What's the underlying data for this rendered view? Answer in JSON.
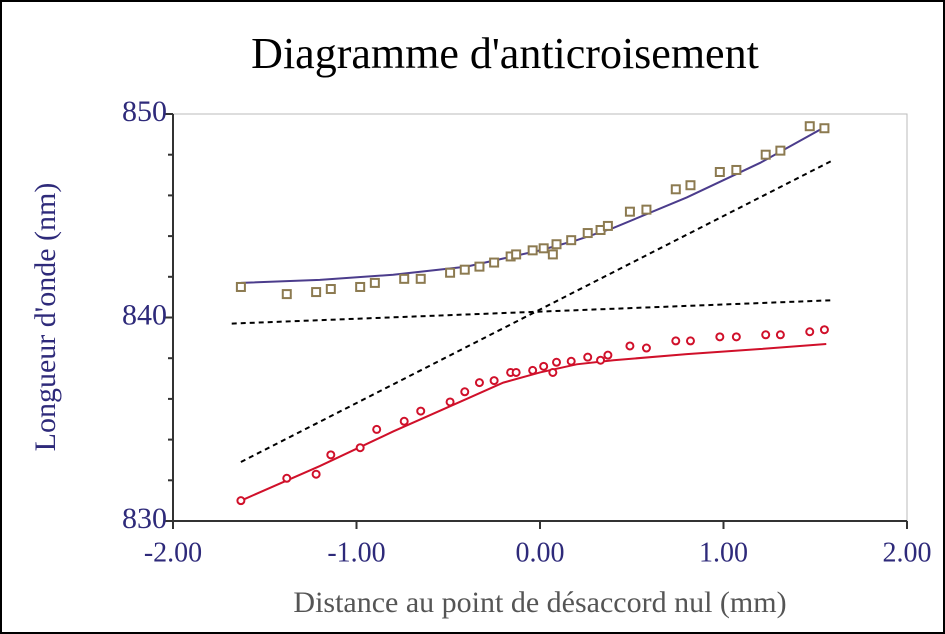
{
  "chart_data": {
    "type": "scatter",
    "title": "Diagramme d'anticroisement",
    "x_label": "Distance au point de désaccord nul (mm)",
    "y_label": "Longueur d'onde (nm)",
    "xlim": [
      -2,
      2
    ],
    "ylim": [
      830,
      850
    ],
    "xticks": [
      {
        "value": -2,
        "label": "-2.00"
      },
      {
        "value": -1,
        "label": "-1.00"
      },
      {
        "value": 0,
        "label": "0.00"
      },
      {
        "value": 1,
        "label": "1.00"
      },
      {
        "value": 2,
        "label": "2.00"
      }
    ],
    "yticks": [
      830,
      840,
      850
    ],
    "yminorticks": [
      832,
      834,
      836,
      838,
      842,
      844,
      846,
      848
    ],
    "series": [
      {
        "color": "#8c7a50",
        "marker": "square",
        "x": [
          -1.63,
          -1.38,
          -1.22,
          -1.14,
          -0.98,
          -0.9,
          -0.74,
          -0.65,
          -0.49,
          -0.41,
          -0.33,
          -0.25,
          -0.16,
          -0.13,
          -0.04,
          0.02,
          0.07,
          0.09,
          0.17,
          0.26,
          0.33,
          0.37,
          0.49,
          0.58,
          0.74,
          0.82,
          0.98,
          1.07,
          1.23,
          1.31,
          1.47,
          1.55
        ],
        "values": [
          841.5,
          841.15,
          841.25,
          841.4,
          841.5,
          841.7,
          841.9,
          841.9,
          842.2,
          842.35,
          842.5,
          842.7,
          843.0,
          843.1,
          843.3,
          843.4,
          843.1,
          843.6,
          843.8,
          844.15,
          844.3,
          844.5,
          845.2,
          845.3,
          846.3,
          846.5,
          847.15,
          847.25,
          848.0,
          848.2,
          849.4,
          849.3
        ]
      },
      {
        "color": "#d0102a",
        "marker": "circle",
        "x": [
          -1.63,
          -1.38,
          -1.22,
          -1.14,
          -0.98,
          -0.89,
          -0.74,
          -0.65,
          -0.49,
          -0.41,
          -0.33,
          -0.25,
          -0.16,
          -0.13,
          -0.04,
          0.02,
          0.07,
          0.09,
          0.17,
          0.26,
          0.33,
          0.37,
          0.49,
          0.58,
          0.74,
          0.82,
          0.98,
          1.07,
          1.23,
          1.31,
          1.47,
          1.55
        ],
        "values": [
          831.0,
          832.1,
          832.3,
          833.25,
          833.6,
          834.5,
          834.9,
          835.4,
          835.85,
          836.35,
          836.8,
          836.9,
          837.3,
          837.3,
          837.4,
          837.6,
          837.3,
          837.8,
          837.85,
          838.05,
          837.9,
          838.15,
          838.6,
          838.5,
          838.85,
          838.85,
          839.05,
          839.05,
          839.15,
          839.15,
          839.3,
          839.4
        ]
      }
    ],
    "lines": [
      {
        "color": "#4b3c8c",
        "dash": false,
        "x": [
          -1.63,
          -1.2,
          -0.8,
          -0.4,
          -0.2,
          0,
          0.2,
          0.4,
          0.8,
          1.2,
          1.56
        ],
        "values": [
          841.7,
          841.85,
          842.1,
          842.5,
          842.9,
          843.3,
          843.8,
          844.4,
          845.9,
          847.6,
          849.4
        ]
      },
      {
        "color": "#d0102a",
        "dash": false,
        "x": [
          -1.63,
          -1.2,
          -0.8,
          -0.4,
          -0.2,
          0,
          0.2,
          0.4,
          0.8,
          1.2,
          1.56
        ],
        "values": [
          831.0,
          832.7,
          834.4,
          836.0,
          836.8,
          837.3,
          837.7,
          837.9,
          838.2,
          838.45,
          838.7
        ]
      },
      {
        "color": "#000000",
        "dash": true,
        "x": [
          -1.63,
          1.59
        ],
        "values": [
          832.9,
          847.7
        ]
      },
      {
        "color": "#000000",
        "dash": true,
        "x": [
          -1.68,
          1.6
        ],
        "values": [
          839.7,
          840.85
        ]
      }
    ]
  }
}
